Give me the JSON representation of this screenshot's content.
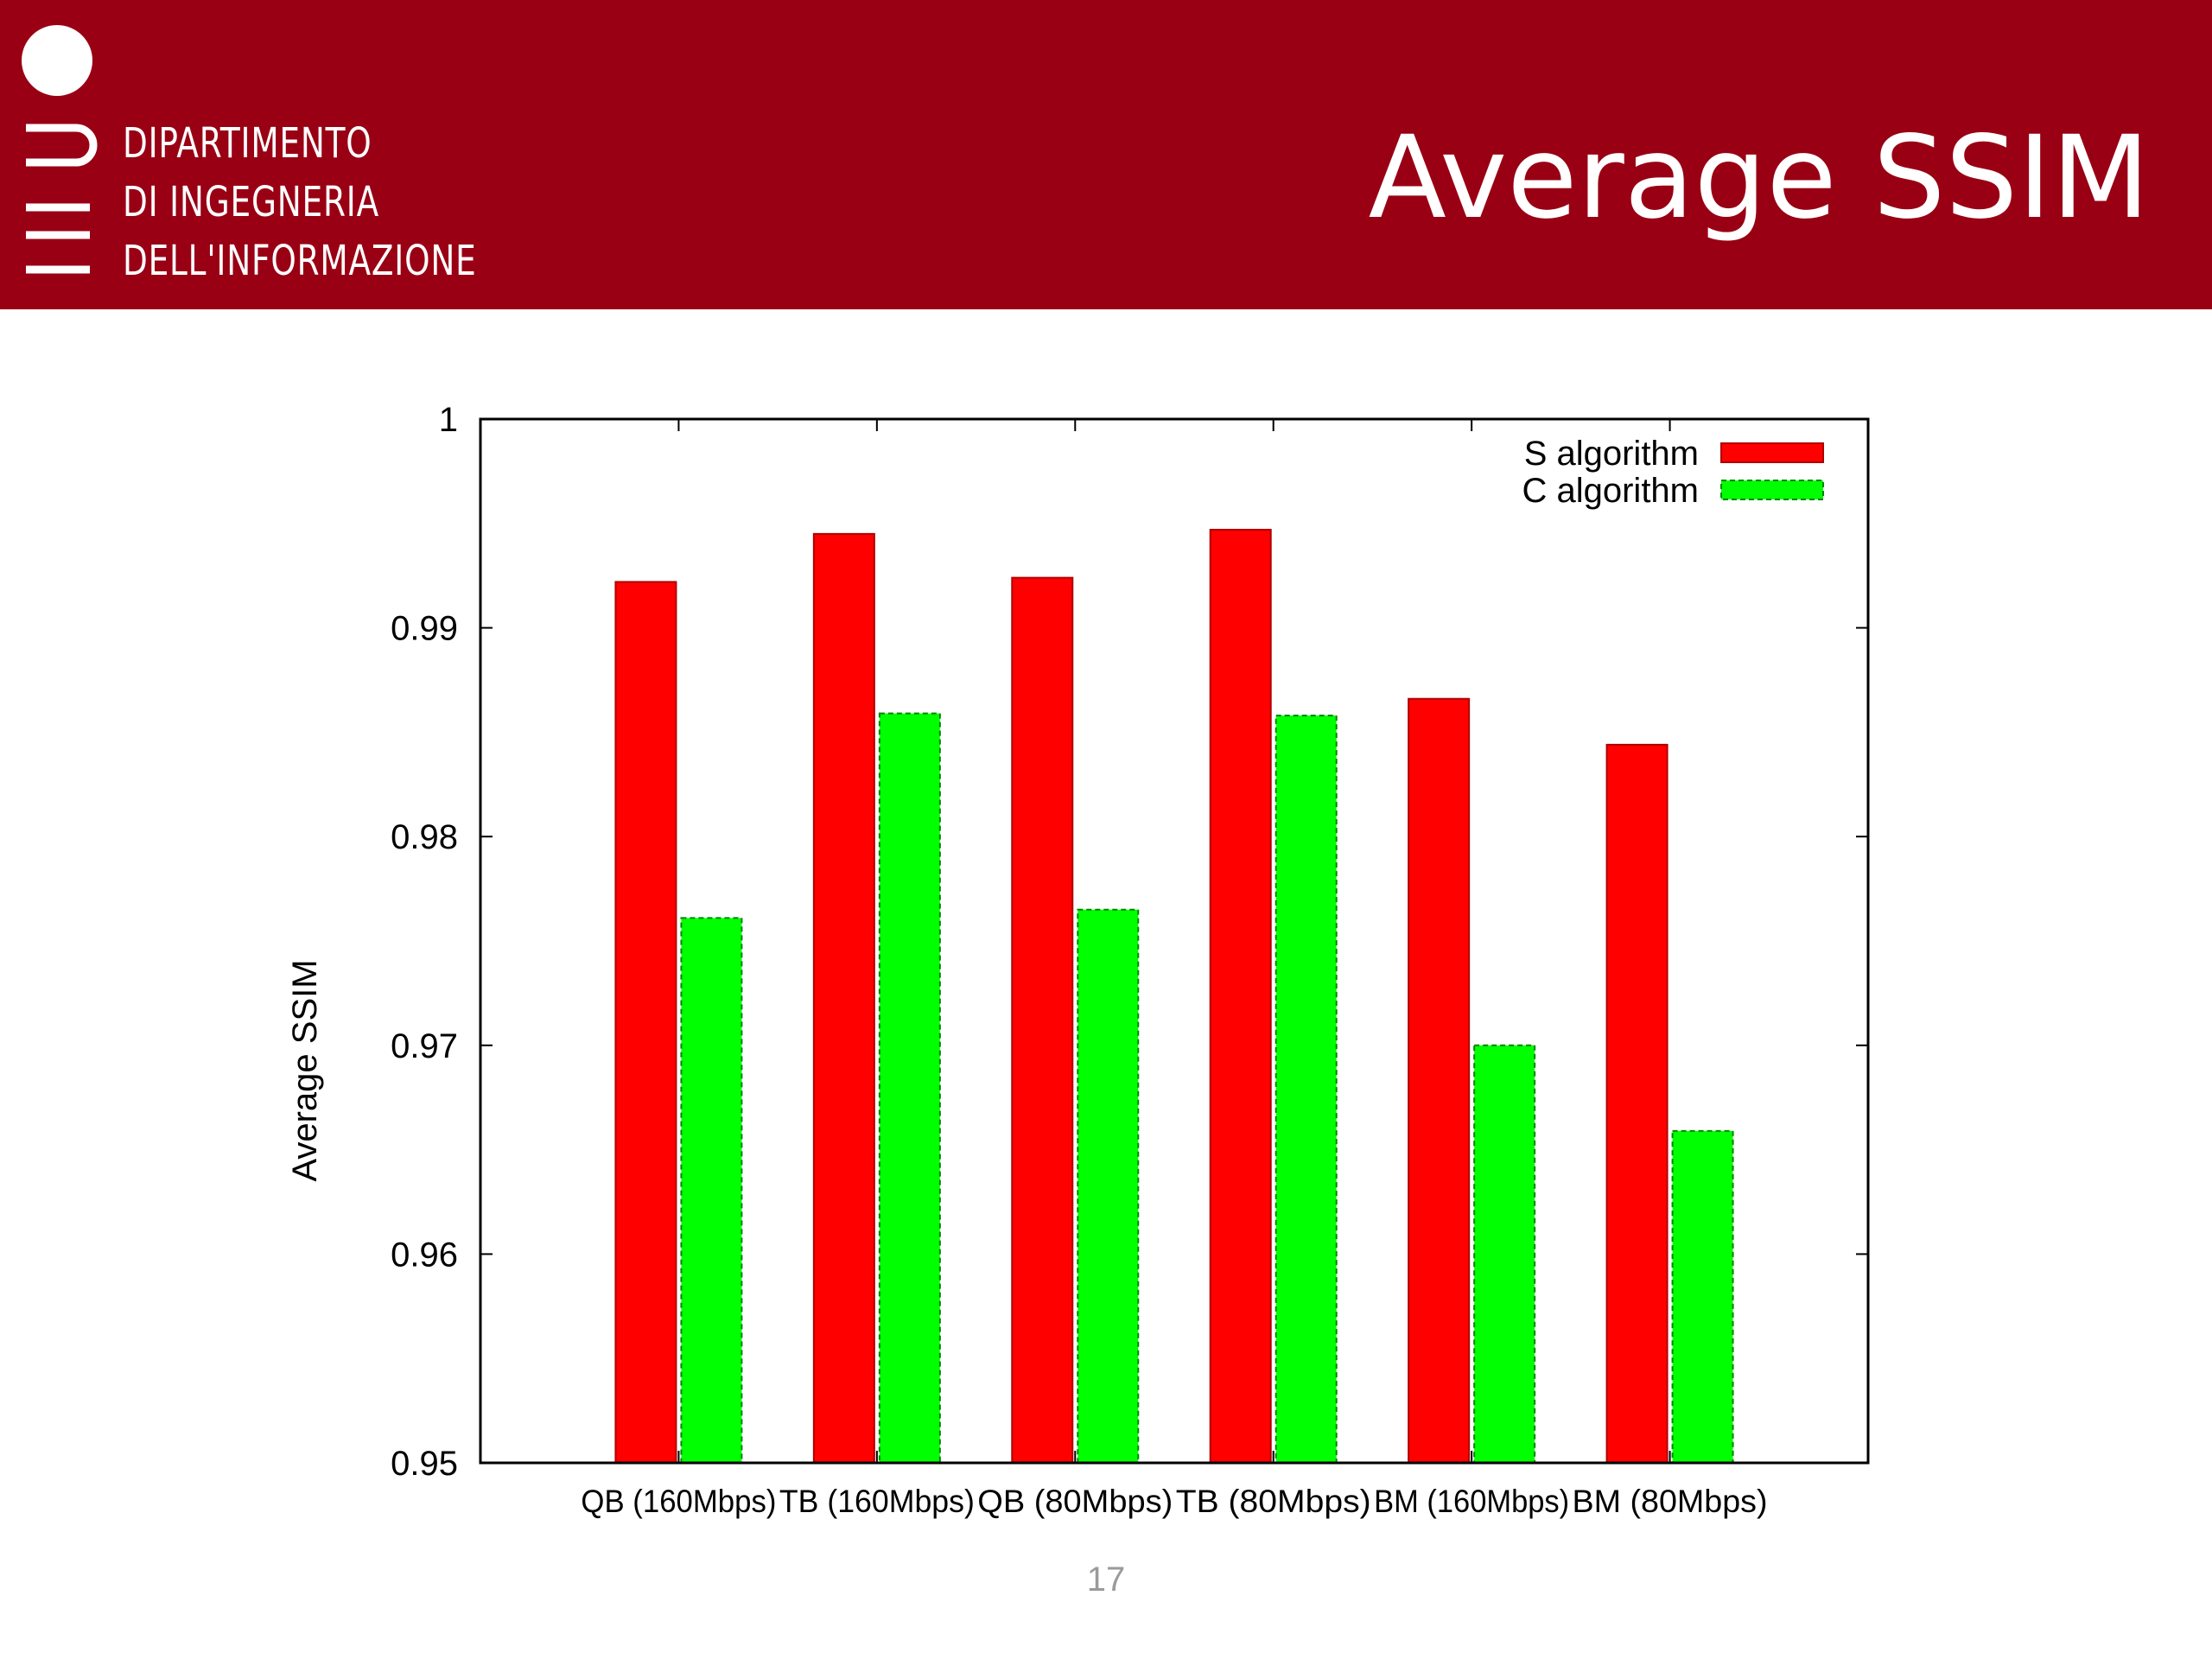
{
  "header": {
    "department_lines": [
      "DIPARTIMENTO",
      "DI INGEGNERIA",
      "DELL'INFORMAZIONE"
    ],
    "title": "Average SSIM",
    "background_color": "#990014"
  },
  "page_number": "17",
  "chart_data": {
    "type": "bar",
    "title": "",
    "xlabel": "",
    "ylabel": "Average SSIM",
    "categories": [
      "QB (160Mbps)",
      "TB (160Mbps)",
      "QB (80Mbps)",
      "TB (80Mbps)",
      "BM (160Mbps)",
      "BM (80Mbps)"
    ],
    "series": [
      {
        "name": "S algorithm",
        "color": "#ff0000",
        "values": [
          0.9922,
          0.9945,
          0.9924,
          0.9947,
          0.9866,
          0.9844
        ]
      },
      {
        "name": "C algorithm",
        "color": "#00ff00",
        "values": [
          0.9761,
          0.9859,
          0.9765,
          0.9858,
          0.97,
          0.9659
        ]
      }
    ],
    "ylim": [
      0.95,
      1
    ],
    "yticks": [
      0.95,
      0.96,
      0.97,
      0.98,
      0.99,
      1
    ],
    "ytick_labels": [
      "0.95",
      "0.96",
      "0.97",
      "0.98",
      "0.99",
      "1"
    ],
    "legend_position": "top-right",
    "grid": false
  }
}
